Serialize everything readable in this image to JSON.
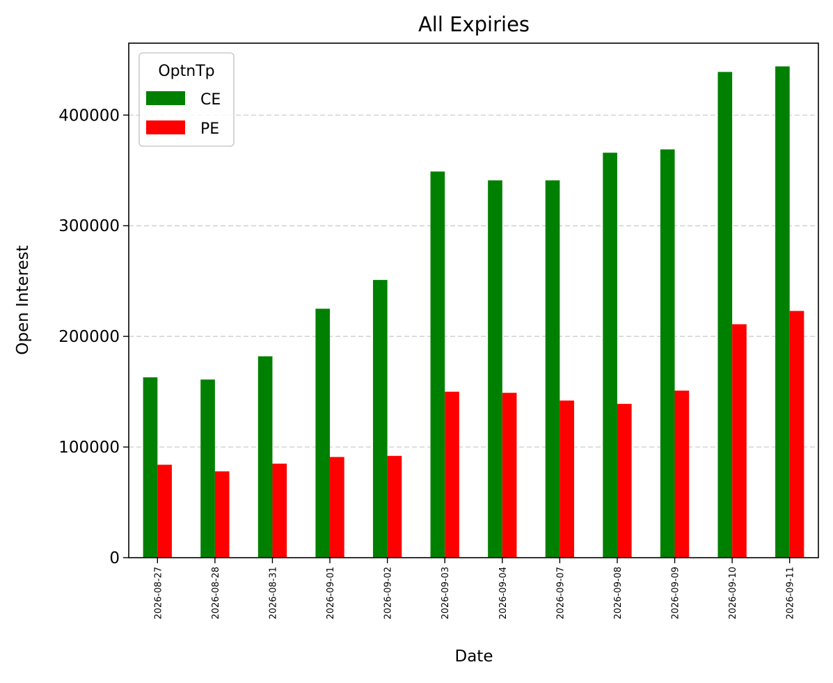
{
  "chart_data": {
    "type": "bar",
    "title": "All Expiries",
    "xlabel": "Date",
    "ylabel": "Open Interest",
    "categories": [
      "2026-08-27",
      "2026-08-28",
      "2026-08-31",
      "2026-09-01",
      "2026-09-02",
      "2026-09-03",
      "2026-09-04",
      "2026-09-07",
      "2026-09-08",
      "2026-09-09",
      "2026-09-10",
      "2026-09-11"
    ],
    "series": [
      {
        "name": "CE",
        "color": "#008000",
        "values": [
          163000,
          161000,
          182000,
          225000,
          251000,
          349000,
          341000,
          341000,
          366000,
          369000,
          439000,
          444000
        ]
      },
      {
        "name": "PE",
        "color": "#ff0000",
        "values": [
          84000,
          78000,
          85000,
          91000,
          92000,
          150000,
          149000,
          142000,
          139000,
          151000,
          211000,
          223000
        ]
      }
    ],
    "ylim": [
      0,
      465000
    ],
    "yticks": [
      "0",
      "100000",
      "200000",
      "300000",
      "400000"
    ],
    "ytick_values": [
      0,
      100000,
      200000,
      300000,
      400000
    ],
    "grid": "horizontal dashed",
    "legend": {
      "title": "OptnTp",
      "position": "top-left"
    }
  }
}
